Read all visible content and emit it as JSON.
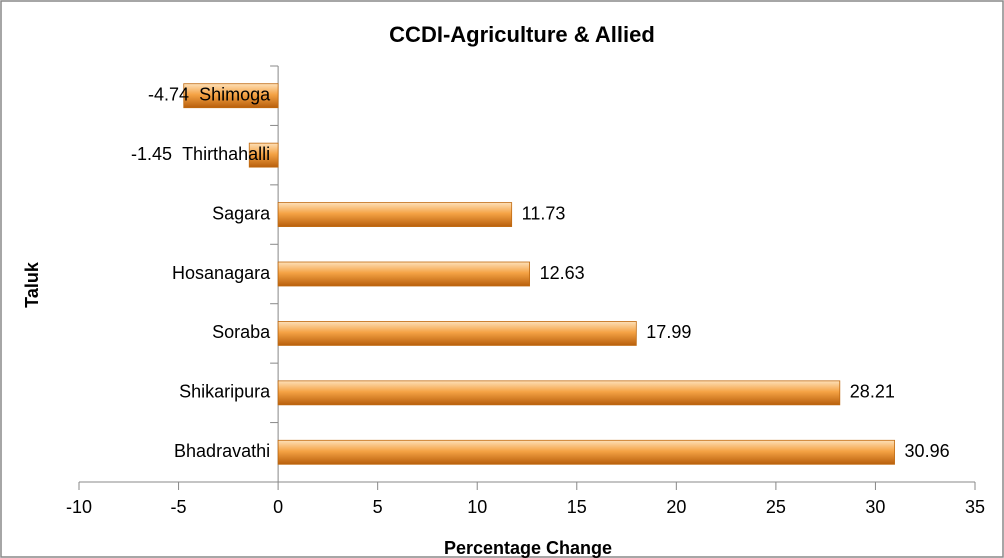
{
  "chart_data": {
    "type": "bar",
    "orientation": "horizontal",
    "title": "CCDI-Agriculture & Allied",
    "x_label": "Percentage Change",
    "y_label": "Taluk",
    "categories": [
      "Shimoga",
      "Thirthahalli",
      "Sagara",
      "Hosanagara",
      "Soraba",
      "Shikaripura",
      "Bhadravathi"
    ],
    "values": [
      -4.74,
      -1.45,
      11.73,
      12.63,
      17.99,
      28.21,
      30.96
    ],
    "color": "#f0962e",
    "xlim": [
      -10,
      35
    ],
    "xticks": [
      -10,
      -5,
      0,
      5,
      10,
      15,
      20,
      25,
      30,
      35
    ]
  }
}
